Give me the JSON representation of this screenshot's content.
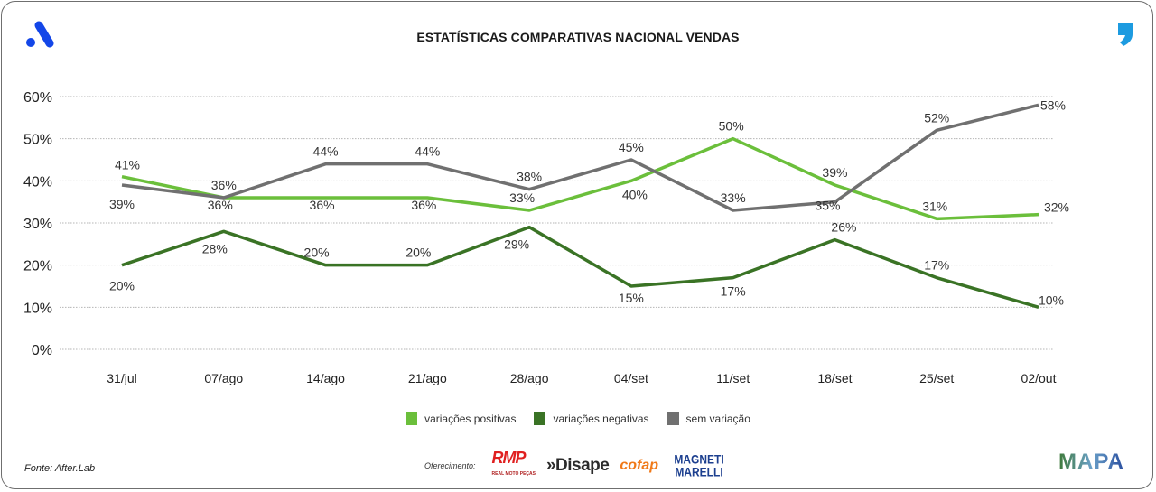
{
  "header": {
    "title": "ESTATÍSTICAS COMPARATIVAS NACIONAL VENDAS",
    "left_logo": "aftersales-a-logo-icon",
    "right_logo": "comma-logo-icon"
  },
  "chart_data": {
    "type": "line",
    "title": "ESTATÍSTICAS COMPARATIVAS NACIONAL VENDAS",
    "xlabel": "",
    "ylabel": "",
    "categories": [
      "31/jul",
      "07/ago",
      "14/ago",
      "21/ago",
      "28/ago",
      "04/set",
      "11/set",
      "18/set",
      "25/set",
      "02/out"
    ],
    "ylim": [
      0,
      60
    ],
    "yticks": [
      0,
      10,
      20,
      30,
      40,
      50,
      60
    ],
    "ytick_labels": [
      "0%",
      "10%",
      "20%",
      "30%",
      "40%",
      "50%",
      "60%"
    ],
    "grid": "horizontal-dotted",
    "legend_position": "bottom-center",
    "series": [
      {
        "name": "variações positivas",
        "color": "#6bbf3b",
        "values": [
          41,
          36,
          36,
          36,
          33,
          40,
          50,
          39,
          31,
          32
        ],
        "labels": [
          "41%",
          "36%",
          "36%",
          "36%",
          "33%",
          "40%",
          "50%",
          "39%",
          "31%",
          "32%"
        ]
      },
      {
        "name": "variações negativas",
        "color": "#3a7325",
        "values": [
          20,
          28,
          20,
          20,
          29,
          15,
          17,
          26,
          17,
          10
        ],
        "labels": [
          "20%",
          "28%",
          "20%",
          "20%",
          "29%",
          "15%",
          "17%",
          "26%",
          "17%",
          "10%"
        ]
      },
      {
        "name": "sem variação",
        "color": "#707070",
        "values": [
          39,
          36,
          44,
          44,
          38,
          45,
          33,
          35,
          52,
          58
        ],
        "labels": [
          "39%",
          "36%",
          "44%",
          "44%",
          "38%",
          "45%",
          "33%",
          "35%",
          "52%",
          "58%"
        ]
      }
    ]
  },
  "footer": {
    "source": "Fonte: After.Lab",
    "sponsor_label": "Oferecimento:",
    "sponsors": [
      "RMP",
      "»Disape",
      "cofap",
      "MAGNETI MARELLI"
    ],
    "rmp_sub": "REAL MOTO PEÇAS",
    "brand_logo": "MAPA"
  }
}
